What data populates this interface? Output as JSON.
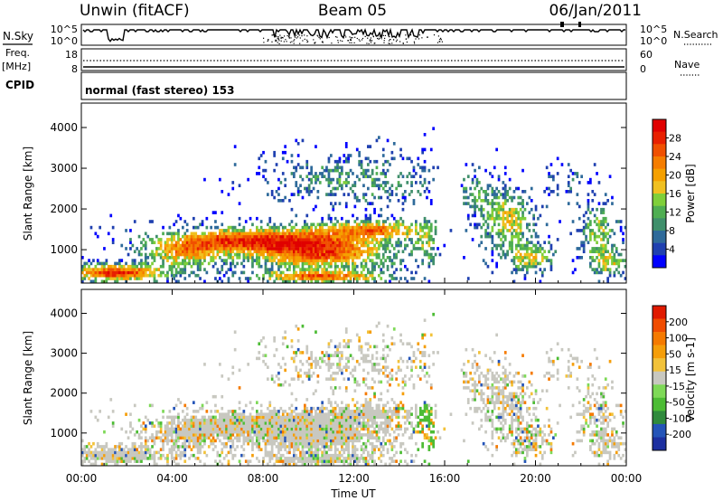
{
  "header": {
    "title_left": "Unwin (fitACF)",
    "title_center": "Beam 05",
    "title_right": "06/Jan/2011"
  },
  "status_panels": {
    "nsky": {
      "label": "N.Sky",
      "tick_top": "10^5",
      "tick_bottom": "10^0",
      "right_label": "N.Search",
      "right_tick_top": "10^5",
      "right_tick_bottom": "10^0"
    },
    "freq": {
      "label_1": "Freq.",
      "label_2": "[MHz]",
      "tick_top": "18",
      "tick_bottom": "8",
      "right_label": "Nave",
      "right_tick_top": "60",
      "right_tick_bottom": "0"
    },
    "cpid": {
      "label": "CPID",
      "text": "normal (fast stereo) 153"
    }
  },
  "chart_data": [
    {
      "type": "heatmap",
      "title": "",
      "xlabel": "",
      "ylabel": "Slant Range [km]",
      "xlim": [
        0,
        24
      ],
      "ylim": [
        180,
        4600
      ],
      "yticks": [
        "1000",
        "2000",
        "3000",
        "4000"
      ],
      "colorbar": {
        "label": "Power [dB]",
        "ticks": [
          "4",
          "8",
          "12",
          "16",
          "20",
          "24",
          "28"
        ],
        "colors": [
          "#0000ff",
          "#1f40b0",
          "#2e6a9a",
          "#3f8f6b",
          "#4fae52",
          "#7fcf3a",
          "#f0c020",
          "#f5a000",
          "#f57d00",
          "#f05000",
          "#e82000",
          "#e00000"
        ]
      },
      "grid": false
    },
    {
      "type": "heatmap",
      "title": "",
      "xlabel": "Time UT",
      "ylabel": "Slant Range [km]",
      "xlim": [
        0,
        24
      ],
      "ylim": [
        180,
        4600
      ],
      "xticks": [
        "00:00",
        "04:00",
        "08:00",
        "12:00",
        "16:00",
        "20:00",
        "00:00"
      ],
      "yticks": [
        "1000",
        "2000",
        "3000",
        "4000"
      ],
      "colorbar": {
        "label": "Velocity [m s-1]",
        "ticks": [
          "200",
          "100",
          "50",
          "15",
          "-15",
          "-50",
          "-100",
          "-200"
        ],
        "colors": [
          "#1c2fa0",
          "#2454b8",
          "#2f8a3c",
          "#4cbc34",
          "#7ed957",
          "#c8c8c0",
          "#f2c23a",
          "#f59e0a",
          "#f57a00",
          "#f04c00",
          "#e01a00"
        ]
      },
      "grid": false
    }
  ]
}
